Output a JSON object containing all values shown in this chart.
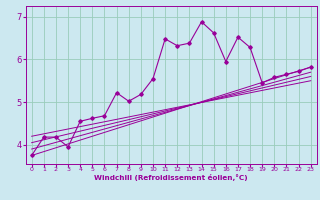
{
  "xlabel": "Windchill (Refroidissement éolien,°C)",
  "bg_color": "#cce8f0",
  "line_color": "#990099",
  "grid_color": "#99ccbb",
  "xlim": [
    -0.5,
    23.5
  ],
  "ylim": [
    3.55,
    7.25
  ],
  "xticks": [
    0,
    1,
    2,
    3,
    4,
    5,
    6,
    7,
    8,
    9,
    10,
    11,
    12,
    13,
    14,
    15,
    16,
    17,
    18,
    19,
    20,
    21,
    22,
    23
  ],
  "yticks": [
    4,
    5,
    6,
    7
  ],
  "main_x": [
    0,
    1,
    2,
    3,
    4,
    5,
    6,
    7,
    8,
    9,
    10,
    11,
    12,
    13,
    14,
    15,
    16,
    17,
    18,
    19,
    20,
    21,
    22,
    23
  ],
  "main_y": [
    3.75,
    4.18,
    4.18,
    3.95,
    4.55,
    4.62,
    4.68,
    5.22,
    5.02,
    5.18,
    5.55,
    6.48,
    6.32,
    6.38,
    6.88,
    6.62,
    5.95,
    6.52,
    6.28,
    5.45,
    5.58,
    5.65,
    5.72,
    5.82
  ],
  "reg_lines": [
    {
      "x": [
        0,
        23
      ],
      "y": [
        3.75,
        5.82
      ]
    },
    {
      "x": [
        0,
        23
      ],
      "y": [
        3.9,
        5.7
      ]
    },
    {
      "x": [
        0,
        23
      ],
      "y": [
        4.05,
        5.6
      ]
    },
    {
      "x": [
        0,
        23
      ],
      "y": [
        4.2,
        5.5
      ]
    }
  ]
}
